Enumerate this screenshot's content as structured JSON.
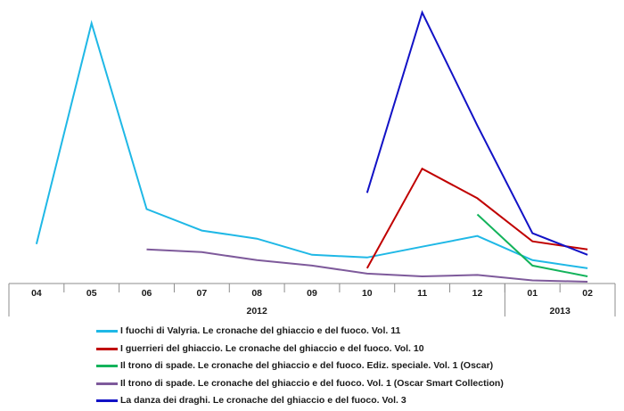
{
  "chart_data": {
    "type": "line",
    "categories": [
      "04",
      "05",
      "06",
      "07",
      "08",
      "09",
      "10",
      "11",
      "12",
      "01",
      "02"
    ],
    "year_groups": [
      {
        "label": "2012",
        "from": 0,
        "to": 8
      },
      {
        "label": "2013",
        "from": 9,
        "to": 10
      }
    ],
    "grid": false,
    "legend_position": "bottom",
    "series": [
      {
        "name": "I fuochi di Valyria. Le cronache del ghiaccio e del fuoco. Vol. 11",
        "color": "#1fb8e6",
        "values": [
          14,
          96,
          27,
          19,
          16,
          10,
          9,
          13,
          17,
          8,
          5
        ]
      },
      {
        "name": "I guerrieri del ghiaccio. Le cronache del ghiaccio e del fuoco. Vol. 10",
        "color": "#c00000",
        "values": [
          null,
          null,
          null,
          null,
          null,
          null,
          5,
          42,
          31,
          15,
          12
        ]
      },
      {
        "name": "Il trono di spade. Le cronache del ghiaccio e del fuoco. Ediz. speciale. Vol. 1 (Oscar)",
        "color": "#13b35b",
        "values": [
          null,
          null,
          null,
          null,
          null,
          null,
          null,
          null,
          25,
          6,
          2
        ]
      },
      {
        "name": "Il trono di spade. Le cronache del ghiaccio e del fuoco. Vol. 1 (Oscar Smart Collection)",
        "color": "#7e5a9b",
        "values": [
          null,
          null,
          12,
          11,
          8,
          6,
          3,
          2,
          2.5,
          0.5,
          0
        ]
      },
      {
        "name": "La danza dei draghi. Le cronache del ghiaccio e del fuoco. Vol. 3",
        "color": "#1212c6",
        "values": [
          null,
          null,
          null,
          null,
          null,
          null,
          33,
          100,
          58,
          18,
          10
        ]
      }
    ]
  }
}
